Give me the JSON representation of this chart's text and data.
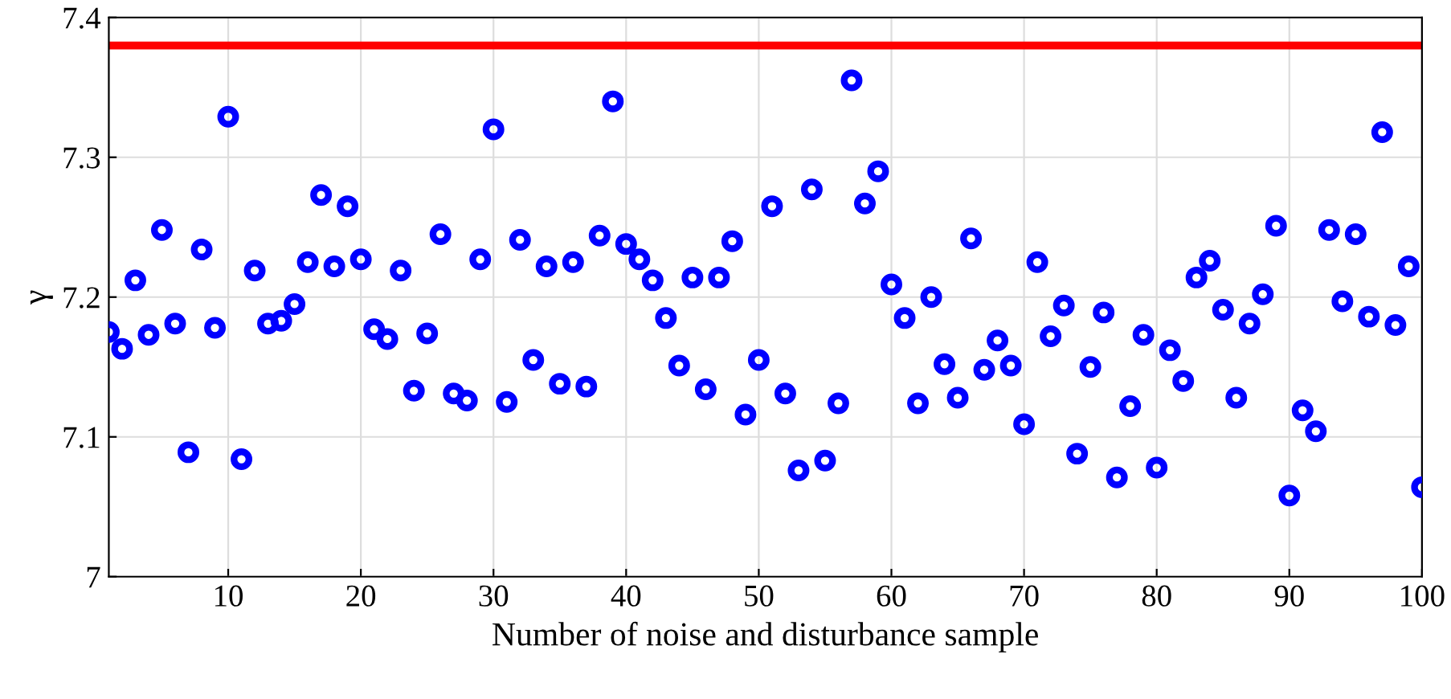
{
  "chart_data": {
    "type": "scatter",
    "xlabel": "Number of noise and disturbance sample",
    "ylabel": "γ",
    "x": [
      1,
      2,
      3,
      4,
      5,
      6,
      7,
      8,
      9,
      10,
      11,
      12,
      13,
      14,
      15,
      16,
      17,
      18,
      19,
      20,
      21,
      22,
      23,
      24,
      25,
      26,
      27,
      28,
      29,
      30,
      31,
      32,
      33,
      34,
      35,
      36,
      37,
      38,
      39,
      40,
      41,
      42,
      43,
      44,
      45,
      46,
      47,
      48,
      49,
      50,
      51,
      52,
      53,
      54,
      55,
      56,
      57,
      58,
      59,
      60,
      61,
      62,
      63,
      64,
      65,
      66,
      67,
      68,
      69,
      70,
      71,
      72,
      73,
      74,
      75,
      76,
      77,
      78,
      79,
      80,
      81,
      82,
      83,
      84,
      85,
      86,
      87,
      88,
      89,
      90,
      91,
      92,
      93,
      94,
      95,
      96,
      97,
      98,
      99,
      100
    ],
    "series": [
      {
        "color": "#0000ff",
        "values": [
          7.175,
          7.163,
          7.212,
          7.173,
          7.248,
          7.181,
          7.089,
          7.234,
          7.178,
          7.329,
          7.084,
          7.219,
          7.181,
          7.183,
          7.195,
          7.225,
          7.273,
          7.222,
          7.265,
          7.227,
          7.177,
          7.17,
          7.219,
          7.133,
          7.174,
          7.245,
          7.131,
          7.126,
          7.227,
          7.32,
          7.125,
          7.241,
          7.155,
          7.222,
          7.138,
          7.225,
          7.136,
          7.244,
          7.34,
          7.238,
          7.227,
          7.212,
          7.185,
          7.151,
          7.214,
          7.134,
          7.214,
          7.24,
          7.116,
          7.155,
          7.265,
          7.131,
          7.076,
          7.277,
          7.083,
          7.124,
          7.355,
          7.267,
          7.29,
          7.209,
          7.185,
          7.124,
          7.2,
          7.152,
          7.128,
          7.242,
          7.148,
          7.169,
          7.151,
          7.109,
          7.225,
          7.172,
          7.194,
          7.088,
          7.15,
          7.189,
          7.071,
          7.122,
          7.173,
          7.078,
          7.162,
          7.14,
          7.214,
          7.226,
          7.191,
          7.128,
          7.181,
          7.202,
          7.251,
          7.058,
          7.119,
          7.104,
          7.248,
          7.197,
          7.245,
          7.186,
          7.318,
          7.18,
          7.222,
          7.064
        ]
      }
    ],
    "ref_lines": [
      {
        "axis": "y",
        "value": 7.38,
        "color": "#ff0000",
        "line_style": "solid"
      }
    ],
    "marker": "circle",
    "xlim": [
      1,
      100
    ],
    "ylim": [
      7,
      7.4
    ],
    "xticks": [
      10,
      20,
      30,
      40,
      50,
      60,
      70,
      80,
      90,
      100
    ],
    "yticks": [
      7,
      7.1,
      7.2,
      7.3,
      7.4
    ],
    "grid": true
  }
}
